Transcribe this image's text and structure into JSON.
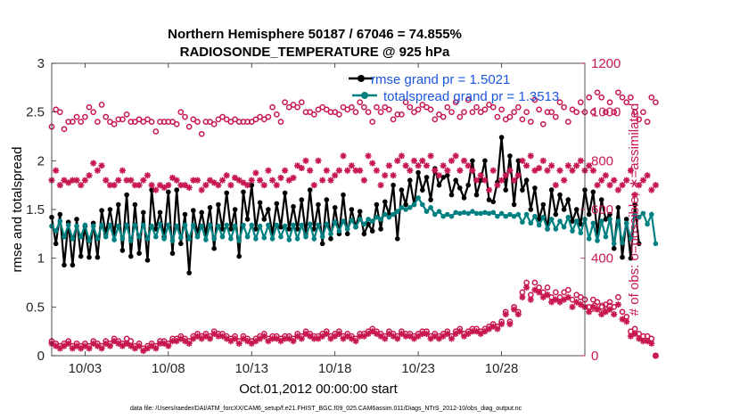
{
  "chart_data": {
    "type": "line",
    "title_line1": "Northern Hemisphere 50187 / 67046 = 74.855%",
    "title_line2": "RADIOSONDE_TEMPERATURE @ 925 hPa",
    "ylabel_left": "rmse and totalspread",
    "ylabel_right": "# of obs: o=possible; ∗=assimilated",
    "xlabel": "Oct.01,2012 00:00:00 start",
    "footnote": "data file: /Users/raeder/DAI/ATM_forcXX/CAM6_setup/f.e21.FHIST_BGC.f09_025.CAM6assim.011/Diags_NTrS_2012-10/obs_diag_output.nc",
    "xlim": [
      1,
      33
    ],
    "ylim_left": [
      0,
      3
    ],
    "ylim_right": [
      0,
      1200
    ],
    "xticks": [
      3,
      8,
      13,
      18,
      23,
      28
    ],
    "xtick_labels": [
      "10/03",
      "10/08",
      "10/13",
      "10/18",
      "10/23",
      "10/28"
    ],
    "yticks_left": [
      "0",
      "0.5",
      "1",
      "1.5",
      "2",
      "2.5",
      "3"
    ],
    "yticks_right": [
      "0",
      "200",
      "400",
      "600",
      "800",
      "1000",
      "1200"
    ],
    "x_start": 1.0,
    "x_step": 0.25,
    "legend": [
      {
        "label": "rmse grand pr = 1.5021",
        "color": "#000000"
      },
      {
        "label": "totalspread grand pr = 1.3513",
        "color": "#008080"
      }
    ],
    "series": [
      {
        "name": "rmse grand pr = 1.5021",
        "axis": "left",
        "color": "#000000",
        "values": [
          1.42,
          1.15,
          1.45,
          0.93,
          1.37,
          0.93,
          1.4,
          1.02,
          1.33,
          1.01,
          1.36,
          1.01,
          1.49,
          1.25,
          1.5,
          1.25,
          1.55,
          1.08,
          1.65,
          1.02,
          1.55,
          1.05,
          1.47,
          0.98,
          1.7,
          1.3,
          1.47,
          1.22,
          1.68,
          1.05,
          1.7,
          1.15,
          1.45,
          0.85,
          1.49,
          1.25,
          1.47,
          1.25,
          1.52,
          1.1,
          1.55,
          1.3,
          1.67,
          1.3,
          1.5,
          1.02,
          1.68,
          1.4,
          1.75,
          1.3,
          1.57,
          1.4,
          1.5,
          1.25,
          1.56,
          1.32,
          1.67,
          1.3,
          1.53,
          1.3,
          1.6,
          1.25,
          1.7,
          1.3,
          1.55,
          1.15,
          1.6,
          1.2,
          1.52,
          1.25,
          1.65,
          1.25,
          1.5,
          1.32,
          1.48,
          1.25,
          1.35,
          1.28,
          1.55,
          1.3,
          1.58,
          1.45,
          1.75,
          1.2,
          1.7,
          1.55,
          1.8,
          1.55,
          1.88,
          1.7,
          1.83,
          1.6,
          1.92,
          1.75,
          1.83,
          1.85,
          1.65,
          1.8,
          1.72,
          1.62,
          1.75,
          2.0,
          1.65,
          1.8,
          2.0,
          1.6,
          1.58,
          1.78,
          2.24,
          1.7,
          2.05,
          1.55,
          2.0,
          1.7,
          1.8,
          1.5,
          1.72,
          1.4,
          1.55,
          1.3,
          1.7,
          1.45,
          1.65,
          1.5,
          1.6,
          1.38,
          1.5,
          1.35,
          1.7,
          1.45,
          1.68,
          1.25,
          1.6,
          1.4,
          1.45,
          1.1,
          1.52,
          1.01,
          1.4,
          1.0,
          1.55,
          1.15
        ]
      },
      {
        "name": "totalspread grand pr = 1.3513",
        "axis": "left",
        "color": "#008080",
        "values": [
          1.33,
          1.28,
          1.38,
          1.22,
          1.34,
          1.2,
          1.33,
          1.22,
          1.34,
          1.18,
          1.33,
          1.2,
          1.34,
          1.22,
          1.34,
          1.19,
          1.33,
          1.2,
          1.34,
          1.18,
          1.34,
          1.22,
          1.34,
          1.2,
          1.33,
          1.22,
          1.35,
          1.2,
          1.34,
          1.18,
          1.33,
          1.21,
          1.34,
          1.2,
          1.34,
          1.22,
          1.33,
          1.19,
          1.34,
          1.2,
          1.33,
          1.22,
          1.34,
          1.2,
          1.33,
          1.18,
          1.34,
          1.22,
          1.34,
          1.2,
          1.33,
          1.21,
          1.34,
          1.2,
          1.34,
          1.22,
          1.33,
          1.19,
          1.34,
          1.2,
          1.34,
          1.22,
          1.35,
          1.2,
          1.34,
          1.22,
          1.35,
          1.25,
          1.37,
          1.28,
          1.38,
          1.3,
          1.39,
          1.32,
          1.4,
          1.35,
          1.4,
          1.38,
          1.42,
          1.4,
          1.45,
          1.42,
          1.45,
          1.48,
          1.52,
          1.5,
          1.52,
          1.55,
          1.62,
          1.55,
          1.48,
          1.52,
          1.45,
          1.48,
          1.43,
          1.45,
          1.43,
          1.47,
          1.46,
          1.47,
          1.46,
          1.48,
          1.46,
          1.46,
          1.47,
          1.46,
          1.47,
          1.43,
          1.46,
          1.43,
          1.45,
          1.43,
          1.45,
          1.37,
          1.45,
          1.36,
          1.43,
          1.34,
          1.42,
          1.3,
          1.4,
          1.3,
          1.38,
          1.32,
          1.42,
          1.28,
          1.38,
          1.26,
          1.4,
          1.2,
          1.36,
          1.18,
          1.38,
          1.22,
          1.4,
          1.15,
          1.38,
          1.16,
          1.36,
          1.2,
          1.45,
          1.42,
          1.46,
          1.35,
          1.45,
          1.15
        ]
      },
      {
        "name": "possible",
        "axis": "right",
        "marker": "circle",
        "color": "#c8174f",
        "values": [
          940,
          1010,
          1000,
          930,
          960,
          960,
          980,
          960,
          980,
          1020,
          1000,
          960,
          1030,
          980,
          960,
          950,
          970,
          970,
          990,
          960,
          960,
          970,
          960,
          970,
          960,
          920,
          960,
          960,
          960,
          960,
          950,
          1000,
          980,
          940,
          970,
          960,
          910,
          960,
          960,
          950,
          970,
          980,
          970,
          960,
          970,
          960,
          960,
          960,
          960,
          970,
          980,
          970,
          980,
          1020,
          990,
          960,
          1040,
          1020,
          1030,
          1020,
          1040,
          1000,
          1000,
          990,
          1010,
          1020,
          1010,
          1000,
          1000,
          990,
          1020,
          1010,
          1020,
          1000,
          1040,
          1020,
          1000,
          960,
          1020,
          1000,
          1020,
          1010,
          970,
          990,
          990,
          1040,
          1020,
          1000,
          1010,
          1030,
          1020,
          1010,
          970,
          990,
          980,
          1020,
          1000,
          1040,
          980,
          1000,
          1050,
          1000,
          1020,
          1000,
          1010,
          1030,
          1020,
          980,
          1010,
          970,
          980,
          1000,
          1020,
          970,
          1000,
          960,
          1050,
          1010,
          950,
          1000,
          1000,
          980,
          1040,
          1020,
          960,
          1010,
          1000,
          1040,
          1000,
          1060,
          1000,
          1080,
          1060,
          1000,
          1040,
          1000,
          1080,
          1060,
          1040,
          1060,
          1000,
          970,
          1000,
          960,
          1060,
          1040
        ]
      },
      {
        "name": "assimilated",
        "axis": "right",
        "marker": "asterisk",
        "color": "#c8174f",
        "values": [
          720,
          760,
          700,
          720,
          710,
          720,
          720,
          700,
          720,
          740,
          790,
          760,
          780,
          720,
          700,
          700,
          720,
          760,
          720,
          720,
          700,
          700,
          720,
          740,
          700,
          680,
          700,
          690,
          700,
          730,
          720,
          700,
          700,
          690,
          720,
          720,
          680,
          700,
          720,
          710,
          700,
          720,
          740,
          700,
          730,
          720,
          710,
          700,
          720,
          750,
          720,
          700,
          760,
          720,
          700,
          730,
          760,
          720,
          730,
          780,
          770,
          800,
          760,
          700,
          800,
          720,
          760,
          720,
          740,
          760,
          820,
          760,
          780,
          760,
          760,
          720,
          820,
          790,
          760,
          700,
          740,
          780,
          740,
          800,
          820,
          780,
          760,
          800,
          780,
          800,
          780,
          820,
          760,
          740,
          780,
          760,
          800,
          820,
          760,
          800,
          780,
          760,
          720,
          740,
          720,
          680,
          760,
          700,
          720,
          740,
          760,
          720,
          740,
          800,
          780,
          820,
          760,
          770,
          800,
          760,
          780,
          700,
          760,
          720,
          780,
          760,
          780,
          800,
          760,
          780,
          760,
          700,
          720,
          740,
          700,
          720,
          680,
          700,
          720,
          760,
          660,
          700,
          720,
          740,
          680,
          700
        ]
      },
      {
        "name": "possible-low",
        "axis": "right",
        "marker": "circle",
        "color": "#c8174f",
        "values": [
          60,
          50,
          40,
          50,
          60,
          40,
          50,
          40,
          50,
          40,
          60,
          50,
          40,
          60,
          50,
          70,
          60,
          50,
          70,
          60,
          40,
          50,
          30,
          40,
          50,
          40,
          60,
          60,
          50,
          70,
          70,
          80,
          70,
          60,
          80,
          90,
          80,
          90,
          80,
          100,
          90,
          90,
          80,
          70,
          80,
          60,
          80,
          70,
          60,
          70,
          80,
          90,
          70,
          80,
          80,
          70,
          80,
          80,
          70,
          90,
          80,
          100,
          90,
          80,
          80,
          90,
          100,
          80,
          90,
          100,
          80,
          90,
          80,
          70,
          90,
          90,
          100,
          110,
          100,
          90,
          80,
          100,
          90,
          80,
          100,
          90,
          90,
          80,
          90,
          100,
          100,
          80,
          90,
          80,
          90,
          100,
          80,
          100,
          110,
          90,
          100,
          110,
          110,
          100,
          110,
          120,
          130,
          120,
          140,
          180,
          140,
          200,
          180,
          260,
          300,
          250,
          300,
          280,
          260,
          280,
          240,
          260,
          240,
          260,
          270,
          230,
          250,
          240,
          230,
          200,
          230,
          220,
          200,
          210,
          220,
          200,
          240,
          180,
          160,
          100,
          110,
          90,
          80,
          80,
          70,
          0
        ]
      },
      {
        "name": "assimilated-low",
        "axis": "right",
        "marker": "asterisk",
        "color": "#c8174f",
        "values": [
          50,
          40,
          30,
          40,
          50,
          30,
          40,
          30,
          40,
          30,
          50,
          40,
          30,
          50,
          40,
          60,
          50,
          40,
          50,
          40,
          30,
          40,
          20,
          30,
          40,
          30,
          50,
          50,
          40,
          60,
          60,
          70,
          60,
          50,
          70,
          80,
          70,
          80,
          70,
          90,
          80,
          80,
          70,
          60,
          70,
          50,
          70,
          60,
          50,
          60,
          70,
          80,
          60,
          70,
          70,
          60,
          70,
          70,
          60,
          80,
          70,
          90,
          80,
          70,
          70,
          80,
          90,
          70,
          80,
          90,
          70,
          80,
          70,
          60,
          80,
          80,
          90,
          100,
          90,
          80,
          70,
          90,
          80,
          70,
          90,
          80,
          80,
          70,
          80,
          90,
          90,
          70,
          80,
          70,
          80,
          90,
          70,
          90,
          100,
          80,
          90,
          100,
          100,
          90,
          100,
          110,
          120,
          110,
          130,
          170,
          130,
          190,
          170,
          240,
          280,
          230,
          270,
          260,
          240,
          250,
          220,
          230,
          220,
          230,
          240,
          200,
          220,
          210,
          200,
          180,
          200,
          190,
          170,
          180,
          190,
          170,
          210,
          150,
          140,
          80,
          90,
          70,
          60,
          60,
          50,
          0
        ]
      }
    ]
  }
}
